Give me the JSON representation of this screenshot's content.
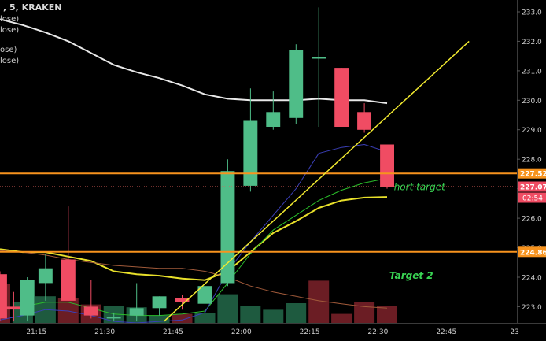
{
  "header": {
    "symbol_line": ", 5, KRAKEN",
    "legend_lines": [
      "lose)",
      "lose)",
      "ose)",
      "lose)"
    ]
  },
  "colors": {
    "background": "#000000",
    "up": "#4fbd88",
    "down": "#f04c63",
    "vol_up": "#1e5a3f",
    "vol_down": "#6b1d24",
    "ma_white": "#e8e8e8",
    "ma_navy": "#3b3fb8",
    "ma_green": "#2bbf2b",
    "ma_yellow": "#e8e02a",
    "ma_orange": "#a15a3a",
    "trend_line": "#f2ea30",
    "hline": "#f7931e",
    "dotted": "#e0605a",
    "target_text": "#39d353",
    "price_label": "#f7931e",
    "current_label": "#f04c63",
    "axis_text": "#cfcfcf"
  },
  "chart_data": {
    "type": "candlestick",
    "x_axis": {
      "tick_labels": [
        "21:15",
        "21:30",
        "21:45",
        "22:00",
        "22:15",
        "22:30",
        "22:45",
        "23"
      ],
      "tick_minutes": [
        15,
        30,
        45,
        60,
        75,
        90,
        105,
        120
      ],
      "range_minutes": [
        7,
        120.5
      ]
    },
    "y_axis": {
      "tick_labels": [
        "223.0",
        "224.0",
        "225.0",
        "226.0",
        "227.0",
        "228.0",
        "229.0",
        "230.0",
        "231.0",
        "232.0",
        "233.0"
      ],
      "tick_values": [
        223,
        224,
        225,
        226,
        227,
        228,
        229,
        230,
        231,
        232,
        233
      ],
      "range": [
        222.45,
        233.4
      ]
    },
    "candles": [
      {
        "t": 7,
        "open": 224.1,
        "high": 224.2,
        "low": 222.5,
        "close": 222.6
      },
      {
        "t": 10,
        "open": 223.0,
        "high": 223.5,
        "low": 222.5,
        "close": 222.9
      },
      {
        "t": 13,
        "open": 222.7,
        "high": 224.0,
        "low": 222.5,
        "close": 223.9
      },
      {
        "t": 17,
        "open": 223.8,
        "high": 224.8,
        "low": 223.2,
        "close": 224.3
      },
      {
        "t": 22,
        "open": 224.6,
        "high": 226.4,
        "low": 223.2,
        "close": 223.2
      },
      {
        "t": 27,
        "open": 223.0,
        "high": 223.9,
        "low": 222.6,
        "close": 222.7
      },
      {
        "t": 32,
        "open": 222.6,
        "high": 222.8,
        "low": 222.5,
        "close": 222.65
      },
      {
        "t": 37,
        "open": 222.7,
        "high": 223.8,
        "low": 222.5,
        "close": 222.95
      },
      {
        "t": 42,
        "open": 222.95,
        "high": 223.35,
        "low": 222.7,
        "close": 223.35
      },
      {
        "t": 47,
        "open": 223.3,
        "high": 223.4,
        "low": 222.9,
        "close": 223.15
      },
      {
        "t": 52,
        "open": 223.1,
        "high": 223.95,
        "low": 222.8,
        "close": 223.7
      },
      {
        "t": 57,
        "open": 223.8,
        "high": 228.0,
        "low": 223.7,
        "close": 227.6
      },
      {
        "t": 62,
        "open": 227.1,
        "high": 230.4,
        "low": 226.9,
        "close": 229.3
      },
      {
        "t": 67,
        "open": 229.1,
        "high": 230.3,
        "low": 229.0,
        "close": 229.6
      },
      {
        "t": 72,
        "open": 229.4,
        "high": 231.9,
        "low": 229.2,
        "close": 231.7
      },
      {
        "t": 77,
        "open": 231.45,
        "high": 233.15,
        "low": 229.1,
        "close": 231.45
      },
      {
        "t": 82,
        "open": 231.1,
        "high": 231.1,
        "low": 229.1,
        "close": 229.1
      },
      {
        "t": 87,
        "open": 229.6,
        "high": 229.9,
        "low": 228.9,
        "close": 229.0
      },
      {
        "t": 92,
        "open": 228.5,
        "high": 228.5,
        "low": 227.0,
        "close": 227.05
      }
    ],
    "volume": {
      "max": 100,
      "bars": [
        {
          "t": 7,
          "value": 95,
          "dir": "down"
        },
        {
          "t": 12,
          "value": 50,
          "dir": "up"
        },
        {
          "t": 17,
          "value": 65,
          "dir": "up"
        },
        {
          "t": 22,
          "value": 60,
          "dir": "down"
        },
        {
          "t": 27,
          "value": 45,
          "dir": "down"
        },
        {
          "t": 32,
          "value": 42,
          "dir": "up"
        },
        {
          "t": 37,
          "value": 38,
          "dir": "up"
        },
        {
          "t": 42,
          "value": 18,
          "dir": "up"
        },
        {
          "t": 47,
          "value": 22,
          "dir": "down"
        },
        {
          "t": 52,
          "value": 25,
          "dir": "up"
        },
        {
          "t": 57,
          "value": 70,
          "dir": "up"
        },
        {
          "t": 62,
          "value": 42,
          "dir": "up"
        },
        {
          "t": 67,
          "value": 32,
          "dir": "up"
        },
        {
          "t": 72,
          "value": 48,
          "dir": "up"
        },
        {
          "t": 77,
          "value": 103,
          "dir": "down"
        },
        {
          "t": 82,
          "value": 22,
          "dir": "down"
        },
        {
          "t": 87,
          "value": 52,
          "dir": "down"
        },
        {
          "t": 92,
          "value": 42,
          "dir": "down"
        }
      ]
    },
    "moving_averages": [
      {
        "color_key": "ma_white",
        "width": 2,
        "points": [
          [
            7,
            232.75
          ],
          [
            12,
            232.55
          ],
          [
            17,
            232.3
          ],
          [
            22,
            232.0
          ],
          [
            27,
            231.6
          ],
          [
            32,
            231.2
          ],
          [
            37,
            230.95
          ],
          [
            42,
            230.75
          ],
          [
            47,
            230.5
          ],
          [
            52,
            230.2
          ],
          [
            57,
            230.05
          ],
          [
            62,
            230.0
          ],
          [
            67,
            230.0
          ],
          [
            72,
            230.0
          ],
          [
            77,
            230.05
          ],
          [
            82,
            230.0
          ],
          [
            87,
            230.0
          ],
          [
            92,
            229.9
          ]
        ]
      },
      {
        "color_key": "ma_yellow",
        "width": 2,
        "points": [
          [
            7,
            224.95
          ],
          [
            12,
            224.85
          ],
          [
            17,
            224.85
          ],
          [
            22,
            224.7
          ],
          [
            27,
            224.55
          ],
          [
            32,
            224.2
          ],
          [
            37,
            224.1
          ],
          [
            42,
            224.05
          ],
          [
            47,
            223.95
          ],
          [
            52,
            223.9
          ],
          [
            57,
            224.2
          ],
          [
            62,
            224.85
          ],
          [
            67,
            225.5
          ],
          [
            72,
            225.9
          ],
          [
            77,
            226.35
          ],
          [
            82,
            226.6
          ],
          [
            87,
            226.7
          ],
          [
            92,
            226.72
          ]
        ]
      },
      {
        "color_key": "ma_green",
        "width": 1,
        "points": [
          [
            7,
            222.9
          ],
          [
            12,
            223.0
          ],
          [
            17,
            223.15
          ],
          [
            22,
            223.15
          ],
          [
            27,
            222.95
          ],
          [
            32,
            222.75
          ],
          [
            37,
            222.7
          ],
          [
            42,
            222.7
          ],
          [
            47,
            222.75
          ],
          [
            52,
            222.85
          ],
          [
            57,
            223.8
          ],
          [
            62,
            224.8
          ],
          [
            67,
            225.6
          ],
          [
            72,
            226.1
          ],
          [
            77,
            226.6
          ],
          [
            82,
            226.95
          ],
          [
            87,
            227.2
          ],
          [
            92,
            227.35
          ]
        ]
      },
      {
        "color_key": "ma_navy",
        "width": 1,
        "points": [
          [
            7,
            222.55
          ],
          [
            12,
            222.7
          ],
          [
            17,
            222.9
          ],
          [
            22,
            222.85
          ],
          [
            27,
            222.7
          ],
          [
            32,
            222.5
          ],
          [
            37,
            222.45
          ],
          [
            42,
            222.5
          ],
          [
            47,
            222.55
          ],
          [
            52,
            222.8
          ],
          [
            57,
            224.2
          ],
          [
            62,
            225.2
          ],
          [
            67,
            226.1
          ],
          [
            72,
            227.0
          ],
          [
            77,
            228.2
          ],
          [
            82,
            228.4
          ],
          [
            87,
            228.5
          ],
          [
            92,
            228.25
          ]
        ]
      },
      {
        "color_key": "ma_orange",
        "width": 1,
        "points": [
          [
            7,
            224.9
          ],
          [
            12,
            224.85
          ],
          [
            17,
            224.75
          ],
          [
            22,
            224.6
          ],
          [
            27,
            224.5
          ],
          [
            32,
            224.4
          ],
          [
            37,
            224.35
          ],
          [
            42,
            224.3
          ],
          [
            47,
            224.3
          ],
          [
            52,
            224.2
          ],
          [
            57,
            224.0
          ],
          [
            62,
            223.7
          ],
          [
            67,
            223.5
          ],
          [
            72,
            223.35
          ],
          [
            77,
            223.2
          ],
          [
            82,
            223.1
          ],
          [
            87,
            223.0
          ],
          [
            92,
            222.95
          ]
        ]
      }
    ],
    "trend_line": {
      "from": [
        43,
        222.5
      ],
      "to": [
        110,
        232.0
      ]
    },
    "horizontal_lines": [
      {
        "value": 227.52,
        "label": "227.52"
      },
      {
        "value": 224.86,
        "label": "224.86"
      }
    ],
    "dotted_line": {
      "value": 227.07,
      "label": "227.07"
    },
    "current_countdown": "02:54",
    "annotations": [
      {
        "text": "hort target",
        "t": 93.5,
        "y": 226.95,
        "italic": true,
        "bold": false,
        "size": 12
      },
      {
        "text": "Target 2",
        "t": 92.5,
        "y": 223.95,
        "italic": true,
        "bold": true,
        "size": 12
      }
    ]
  }
}
